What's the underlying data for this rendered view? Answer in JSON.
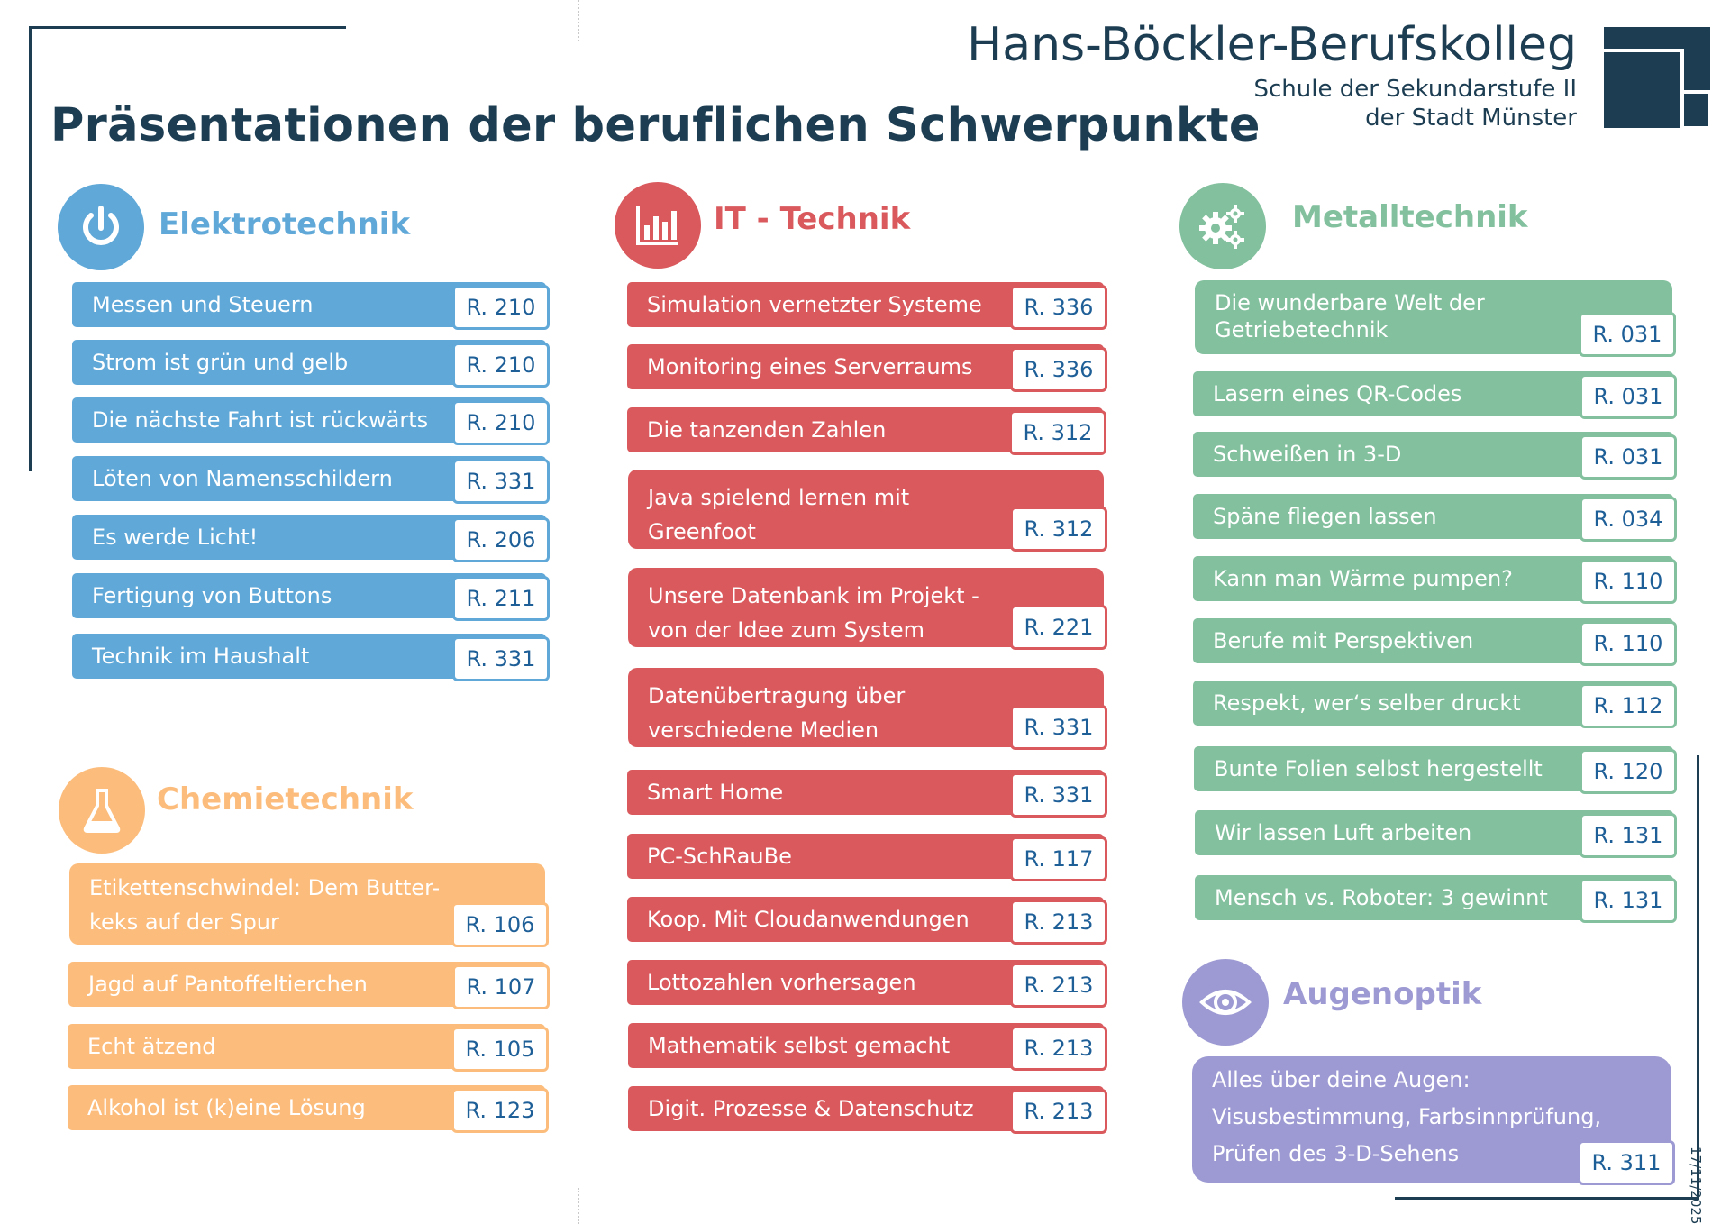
{
  "header": {
    "title": "Präsentationen der beruflichen Schwerpunkte",
    "school": "Hans-Böckler-Berufskolleg",
    "school_sub1": "Schule der Sekundarstufe II",
    "school_sub2": "der Stadt Münster",
    "logo": "school-logo-squares"
  },
  "colors": {
    "navy": "#1c3d52",
    "elektrotechnik": "#5fa8d8",
    "it_technik": "#d9595d",
    "metalltechnik": "#82c09e",
    "chemietechnik": "#fcbd7c",
    "augenoptik": "#9d9ad3",
    "room_text": "#1e5f98"
  },
  "sections": {
    "elektrotechnik": {
      "heading": "Elektrotechnik",
      "icon": "power-icon",
      "items": [
        {
          "label": "Messen und Steuern",
          "room": "R. 210"
        },
        {
          "label": "Strom ist grün und gelb",
          "room": "R. 210"
        },
        {
          "label": "Die nächste Fahrt ist rückwärts",
          "room": "R. 210"
        },
        {
          "label": "Löten von Namensschildern",
          "room": "R. 331"
        },
        {
          "label": "Es werde Licht!",
          "room": "R. 206"
        },
        {
          "label": "Fertigung von Buttons",
          "room": "R. 211"
        },
        {
          "label": "Technik im Haushalt",
          "room": "R. 331"
        }
      ]
    },
    "chemietechnik": {
      "heading": "Chemietechnik",
      "icon": "flask-icon",
      "items": [
        {
          "label": "Etikettenschwindel: Dem Butter-keks auf der Spur",
          "room": "R. 106"
        },
        {
          "label": "Jagd auf Pantoffeltierchen",
          "room": "R. 107"
        },
        {
          "label": "Echt ätzend",
          "room": "R. 105"
        },
        {
          "label": "Alkohol ist (k)eine Lösung",
          "room": "R. 123"
        }
      ]
    },
    "it_technik": {
      "heading": "IT - Technik",
      "icon": "bar-chart-icon",
      "items": [
        {
          "label": "Simulation vernetzter Systeme",
          "room": "R. 336"
        },
        {
          "label": "Monitoring eines Serverraums",
          "room": "R. 336"
        },
        {
          "label": "Die tanzenden Zahlen",
          "room": "R. 312"
        },
        {
          "label": "Java spielend lernen mit Greenfoot",
          "room": "R. 312"
        },
        {
          "label": "Unsere Datenbank im Projekt - von der Idee zum System",
          "room": "R. 221"
        },
        {
          "label": "Datenübertragung über verschiedene Medien",
          "room": "R. 331"
        },
        {
          "label": "Smart Home",
          "room": "R. 331"
        },
        {
          "label": "PC-SchRauBe",
          "room": "R. 117"
        },
        {
          "label": "Koop. Mit Cloudanwendungen",
          "room": "R. 213"
        },
        {
          "label": "Lottozahlen vorhersagen",
          "room": "R. 213"
        },
        {
          "label": "Mathematik selbst gemacht",
          "room": "R. 213"
        },
        {
          "label": "Digit. Prozesse & Datenschutz",
          "room": "R. 213"
        }
      ]
    },
    "metalltechnik": {
      "heading": "Metalltechnik",
      "icon": "gears-icon",
      "items": [
        {
          "label": "Die wunderbare Welt der Getriebetechnik",
          "room": "R. 031"
        },
        {
          "label": "Lasern eines QR-Codes",
          "room": "R. 031"
        },
        {
          "label": "Schweißen in 3-D",
          "room": "R. 031"
        },
        {
          "label": "Späne fliegen lassen",
          "room": "R. 034"
        },
        {
          "label": "Kann man Wärme pumpen?",
          "room": "R. 110"
        },
        {
          "label": "Berufe mit Perspektiven",
          "room": "R. 110"
        },
        {
          "label": "Respekt, wer‘s selber druckt",
          "room": "R. 112"
        },
        {
          "label": "Bunte Folien selbst hergestellt",
          "room": "R. 120"
        },
        {
          "label": "Wir lassen Luft arbeiten",
          "room": "R. 131"
        },
        {
          "label": "Mensch vs. Roboter: 3 gewinnt",
          "room": "R. 131"
        }
      ]
    },
    "augenoptik": {
      "heading": "Augenoptik",
      "icon": "eye-icon",
      "items": [
        {
          "label": "Alles über deine Augen: Visusbestimmung, Farbsinnprüfung, Prüfen des 3-D-Sehens",
          "room": "R. 311"
        }
      ]
    }
  },
  "footer": {
    "date": "17/11/2025"
  }
}
